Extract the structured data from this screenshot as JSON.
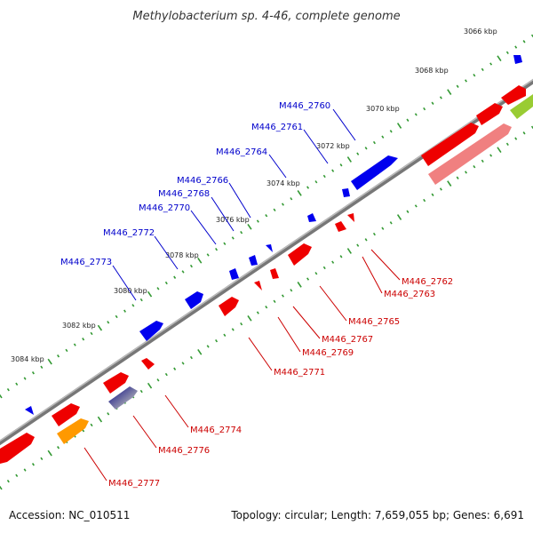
{
  "title": "Methylobacterium sp. 4-46, complete genome",
  "accession": "Accession: NC_010511",
  "topology": "Topology: circular; Length: 7,659,055 bp; Genes: 6,691",
  "tick_labels": [
    "3066 kbp",
    "3068 kbp",
    "3070 kbp",
    "3072 kbp",
    "3074 kbp",
    "3076 kbp",
    "3078 kbp",
    "3080 kbp",
    "3082 kbp",
    "3084 kbp"
  ],
  "forward_gene_labels": [
    "M446_2760",
    "M446_2761",
    "M446_2764",
    "M446_2766",
    "M446_2768",
    "M446_2770",
    "M446_2772",
    "M446_2773"
  ],
  "reverse_gene_labels": [
    "M446_2762",
    "M446_2763",
    "M446_2765",
    "M446_2767",
    "M446_2769",
    "M446_2771",
    "M446_2774",
    "M446_2776",
    "M446_2777"
  ],
  "colors": {
    "backbone": "#888888",
    "forward_gene": "#0000ee",
    "reverse_gene": "#ee0000",
    "reverse_gene_light": "#f08080",
    "rna_gene": "#ff9900",
    "other_gene": "#99cc33",
    "navy_gene": "#000080",
    "tick_outer": "#339933",
    "forward_label": "#0000cc",
    "reverse_label": "#cc0000"
  }
}
